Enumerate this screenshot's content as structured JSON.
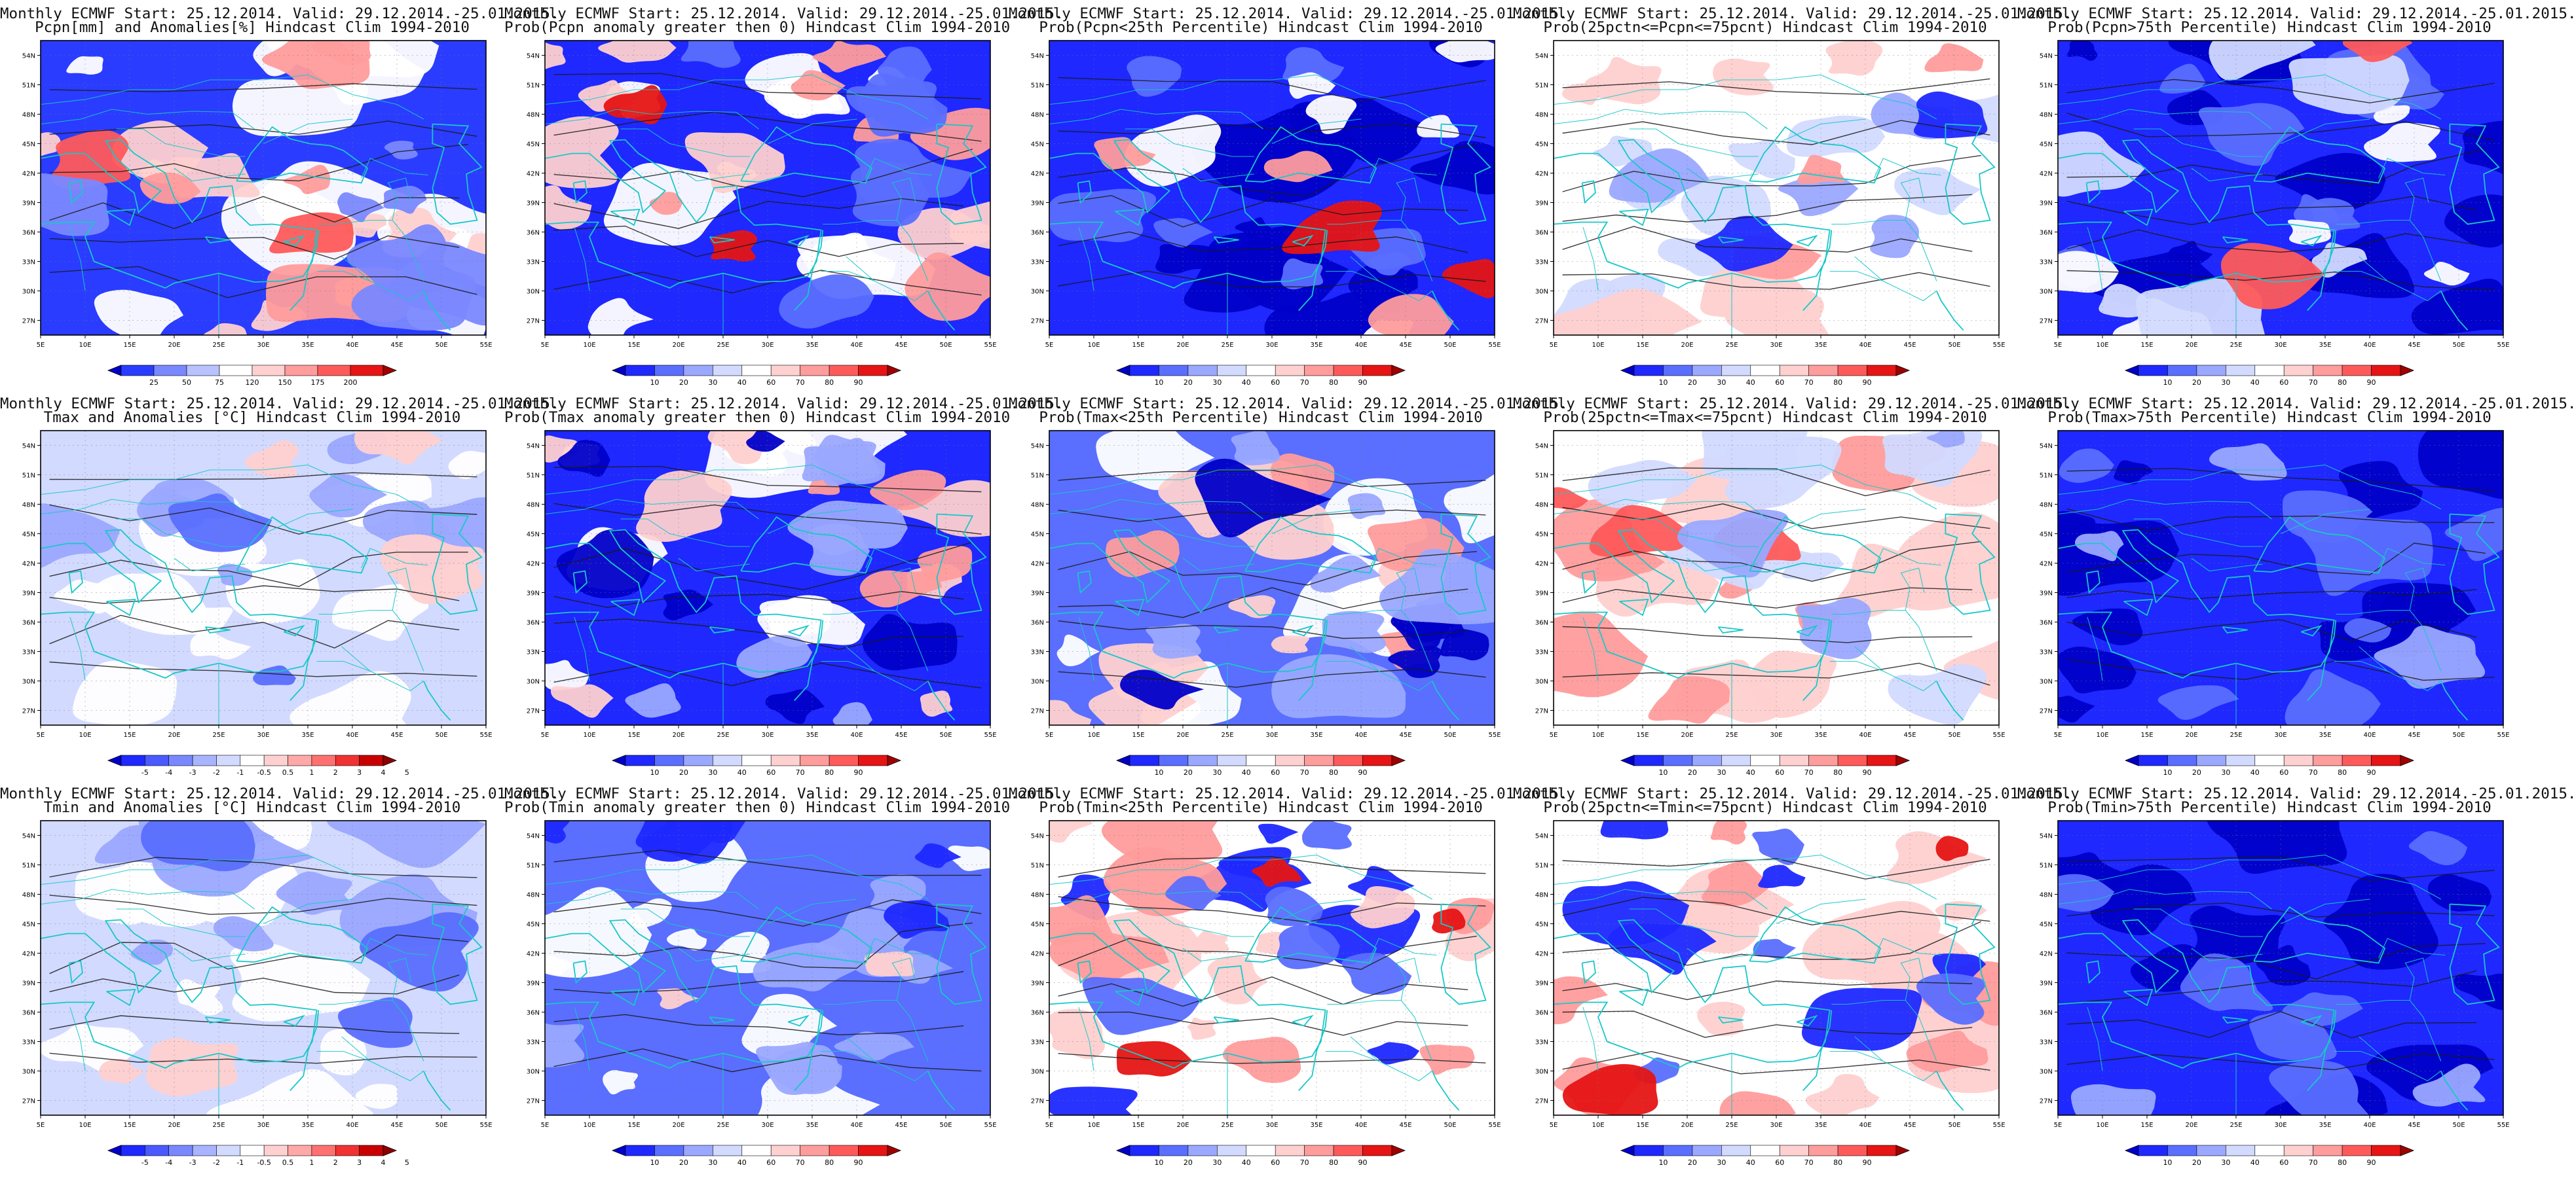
{
  "panel_titles": [
    [
      "Monthly ECMWF Start: 25.12.2014. Valid: 29.12.2014.-25.01.2015.",
      "Pcpn[mm] and Anomalies[%] Hindcast Clim 1994-2010"
    ],
    [
      "Monthly ECMWF Start: 25.12.2014. Valid: 29.12.2014.-25.01.2015.",
      "Prob(Pcpn anomaly greater then 0) Hindcast Clim 1994-2010"
    ],
    [
      "Monthly ECMWF Start: 25.12.2014. Valid: 29.12.2014.-25.01.2015.",
      "Prob(Pcpn<25th Percentile) Hindcast Clim 1994-2010"
    ],
    [
      "Monthly ECMWF Start: 25.12.2014. Valid: 29.12.2014.-25.01.2015.",
      "Prob(25pctn<=Pcpn<=75pcnt) Hindcast Clim 1994-2010"
    ],
    [
      "Monthly ECMWF Start: 25.12.2014. Valid: 29.12.2014.-25.01.2015.",
      "Prob(Pcpn>75th Percentile) Hindcast Clim 1994-2010"
    ],
    [
      "Monthly ECMWF Start: 25.12.2014. Valid: 29.12.2014.-25.01.2015.",
      "Tmax and Anomalies [°C] Hindcast Clim 1994-2010"
    ],
    [
      "Monthly ECMWF Start: 25.12.2014. Valid: 29.12.2014.-25.01.2015.",
      "Prob(Tmax anomaly greater then 0) Hindcast Clim 1994-2010"
    ],
    [
      "Monthly ECMWF Start: 25.12.2014. Valid: 29.12.2014.-25.01.2015.",
      "Prob(Tmax<25th Percentile) Hindcast Clim 1994-2010"
    ],
    [
      "Monthly ECMWF Start: 25.12.2014. Valid: 29.12.2014.-25.01.2015.",
      "Prob(25pctn<=Tmax<=75pcnt) Hindcast Clim 1994-2010"
    ],
    [
      "Monthly ECMWF Start: 25.12.2014. Valid: 29.12.2014.-25.01.2015.",
      "Prob(Tmax>75th Percentile) Hindcast Clim 1994-2010"
    ],
    [
      "Monthly ECMWF Start: 25.12.2014. Valid: 29.12.2014.-25.01.2015.",
      "Tmin and Anomalies [°C] Hindcast Clim 1994-2010"
    ],
    [
      "Monthly ECMWF Start: 25.12.2014. Valid: 29.12.2014.-25.01.2015.",
      "Prob(Tmin anomaly greater then 0) Hindcast Clim 1994-2010"
    ],
    [
      "Monthly ECMWF Start: 25.12.2014. Valid: 29.12.2014.-25.01.2015.",
      "Prob(Tmin<25th Percentile) Hindcast Clim 1994-2010"
    ],
    [
      "Monthly ECMWF Start: 25.12.2014. Valid: 29.12.2014.-25.01.2015.",
      "Prob(25pctn<=Tmin<=75pcnt) Hindcast Clim 1994-2010"
    ],
    [
      "Monthly ECMWF Start: 25.12.2014. Valid: 29.12.2014.-25.01.2015.",
      "Prob(Tmin>75th Percentile) Hindcast Clim 1994-2010"
    ]
  ],
  "chart_data": {
    "type": "heatmap",
    "description_grid": "3 rows x 5 columns of filled-contour maps over the Mediterranean / Middle East",
    "x_ticks": [
      "5E",
      "10E",
      "15E",
      "20E",
      "25E",
      "30E",
      "35E",
      "40E",
      "45E",
      "50E",
      "55E"
    ],
    "y_ticks": [
      "54N",
      "51N",
      "48N",
      "45N",
      "42N",
      "39N",
      "36N",
      "33N",
      "30N",
      "27N"
    ],
    "lon_range": [
      5,
      55
    ],
    "lat_range": [
      25.5,
      55.5
    ],
    "prob_colorbar": {
      "labels": [
        "10",
        "20",
        "30",
        "40",
        "60",
        "70",
        "80",
        "90"
      ],
      "colors": [
        "#0000c8",
        "#1e28ff",
        "#5a6eff",
        "#9aa8ff",
        "#d2daff",
        "#ffffff",
        "#ffd0d0",
        "#ff9c9c",
        "#ff5a5a",
        "#e61414",
        "#a00000"
      ]
    },
    "pcpn_colorbar": {
      "labels": [
        "25",
        "50",
        "75",
        "120",
        "150",
        "175",
        "200"
      ],
      "colors": [
        "#0000c8",
        "#2a3cff",
        "#7a88ff",
        "#b8c2ff",
        "#ffffff",
        "#ffd0d0",
        "#ff9c9c",
        "#ff5a5a",
        "#e61414",
        "#a00000"
      ]
    },
    "temp_colorbar": {
      "labels": [
        "-5",
        "-4",
        "-3",
        "-2",
        "-1",
        "-0.5",
        "0.5",
        "1",
        "2",
        "3",
        "4",
        "5"
      ],
      "colors": [
        "#0000c8",
        "#1e28ff",
        "#4a5aff",
        "#7a88ff",
        "#a8b4ff",
        "#d2daff",
        "#ffffff",
        "#ffd0d0",
        "#ffa8a8",
        "#ff7070",
        "#f03232",
        "#c80000",
        "#8c0000"
      ]
    },
    "panels": [
      {
        "variable": "Pcpn anomaly",
        "colorbar": "pcpn",
        "dominant": "blue with red over Greece/Turkey"
      },
      {
        "variable": "Prob Pcpn>0",
        "colorbar": "prob",
        "dominant": "blue with red Balkans/Turkey"
      },
      {
        "variable": "Prob Pcpn<25th",
        "colorbar": "prob",
        "dominant": "blue with red south"
      },
      {
        "variable": "Prob 25-75 Pcpn",
        "colorbar": "prob",
        "dominant": "light mixed"
      },
      {
        "variable": "Prob Pcpn>75th",
        "colorbar": "prob",
        "dominant": "blue"
      },
      {
        "variable": "Tmax anomaly",
        "colorbar": "temp",
        "dominant": "light blue/white"
      },
      {
        "variable": "Prob Tmax>0",
        "colorbar": "prob",
        "dominant": "blue with red north-west"
      },
      {
        "variable": "Prob Tmax<25th",
        "colorbar": "prob",
        "dominant": "mixed blue/red south"
      },
      {
        "variable": "Prob 25-75 Tmax",
        "colorbar": "prob",
        "dominant": "red/white"
      },
      {
        "variable": "Prob Tmax>75th",
        "colorbar": "prob",
        "dominant": "deep blue"
      },
      {
        "variable": "Tmin anomaly",
        "colorbar": "temp",
        "dominant": "light blue/white"
      },
      {
        "variable": "Prob Tmin>0",
        "colorbar": "prob",
        "dominant": "blue/white"
      },
      {
        "variable": "Prob Tmin<25th",
        "colorbar": "prob",
        "dominant": "blue north, red south"
      },
      {
        "variable": "Prob 25-75 Tmin",
        "colorbar": "prob",
        "dominant": "red north/white"
      },
      {
        "variable": "Prob Tmin>75th",
        "colorbar": "prob",
        "dominant": "deep blue"
      }
    ]
  }
}
